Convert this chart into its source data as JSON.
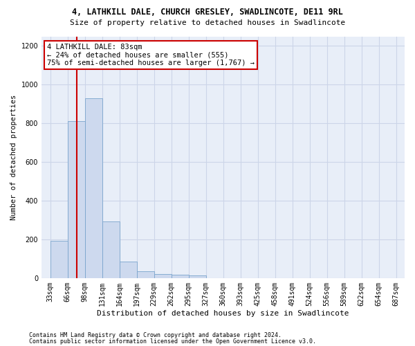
{
  "title": "4, LATHKILL DALE, CHURCH GRESLEY, SWADLINCOTE, DE11 9RL",
  "subtitle": "Size of property relative to detached houses in Swadlincote",
  "xlabel": "Distribution of detached houses by size in Swadlincote",
  "ylabel": "Number of detached properties",
  "footer_line1": "Contains HM Land Registry data © Crown copyright and database right 2024.",
  "footer_line2": "Contains public sector information licensed under the Open Government Licence v3.0.",
  "bar_color": "#cdd9ee",
  "bar_edge_color": "#7aa4cc",
  "annotation_text": "4 LATHKILL DALE: 83sqm\n← 24% of detached houses are smaller (555)\n75% of semi-detached houses are larger (1,767) →",
  "annotation_box_color": "#ffffff",
  "annotation_box_edge_color": "#cc0000",
  "vline_color": "#cc0000",
  "vline_x_index": 1.75,
  "bins_left": [
    0,
    1,
    2,
    3,
    4,
    5,
    6,
    7,
    8,
    9,
    10,
    11,
    12,
    13,
    14,
    15,
    16,
    17,
    18,
    19
  ],
  "bin_labels": [
    "33sqm",
    "66sqm",
    "98sqm",
    "131sqm",
    "164sqm",
    "197sqm",
    "229sqm",
    "262sqm",
    "295sqm",
    "327sqm",
    "360sqm",
    "393sqm",
    "425sqm",
    "458sqm",
    "491sqm",
    "524sqm",
    "556sqm",
    "589sqm",
    "622sqm",
    "654sqm",
    "687sqm"
  ],
  "values": [
    193,
    810,
    928,
    292,
    85,
    35,
    20,
    18,
    12,
    0,
    0,
    0,
    0,
    0,
    0,
    0,
    0,
    0,
    0,
    0
  ],
  "ylim": [
    0,
    1250
  ],
  "yticks": [
    0,
    200,
    400,
    600,
    800,
    1000,
    1200
  ],
  "grid_color": "#ccd5e8",
  "bg_color": "#e8eef8",
  "title_fontsize": 8.5,
  "subtitle_fontsize": 8,
  "tick_fontsize": 7,
  "ylabel_fontsize": 7.5,
  "xlabel_fontsize": 8,
  "footer_fontsize": 6,
  "ann_fontsize": 7.5
}
